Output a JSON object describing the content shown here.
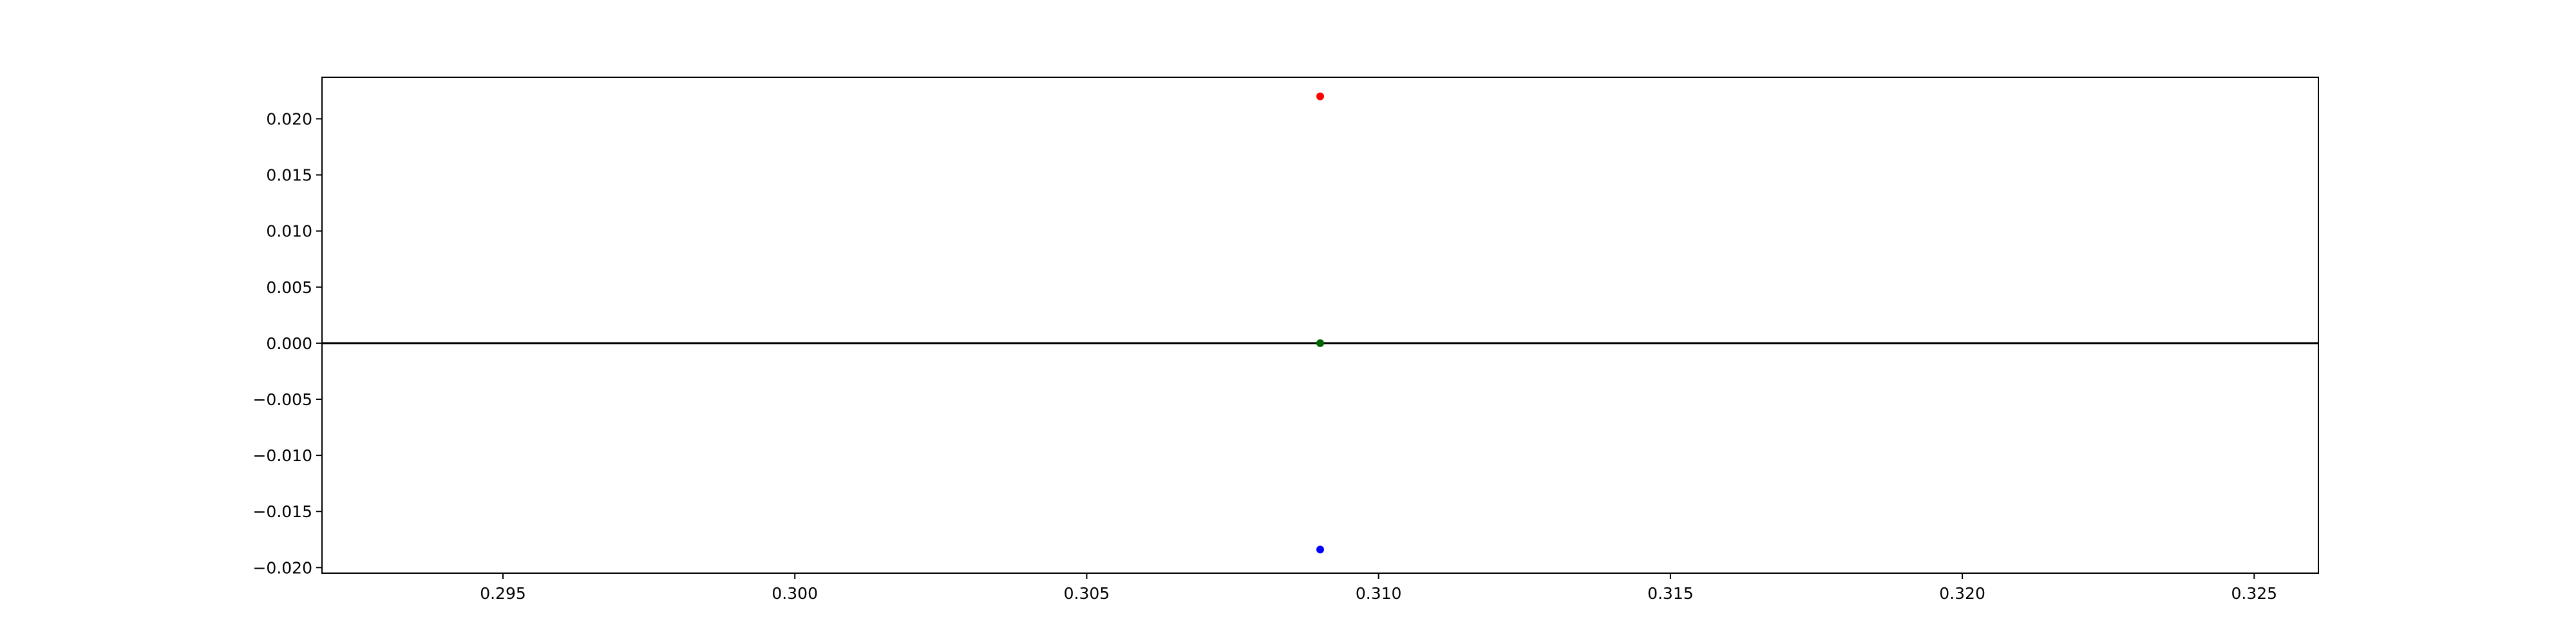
{
  "chart_data": {
    "type": "scatter",
    "title": "",
    "xlabel": "",
    "ylabel": "",
    "xlim": [
      0.2919,
      0.3261
    ],
    "ylim": [
      -0.0205,
      0.0237
    ],
    "grid": false,
    "legend": "none",
    "x_ticks": [
      0.295,
      0.3,
      0.305,
      0.31,
      0.315,
      0.32,
      0.325
    ],
    "x_tick_labels": [
      "0.295",
      "0.300",
      "0.305",
      "0.310",
      "0.315",
      "0.320",
      "0.325"
    ],
    "y_ticks": [
      0.02,
      0.015,
      0.01,
      0.005,
      0.0,
      -0.005,
      -0.01,
      -0.015,
      -0.02
    ],
    "y_tick_labels": [
      "0.020",
      "0.015",
      "0.010",
      "0.005",
      "0.000",
      "−0.005",
      "−0.010",
      "−0.015",
      "−0.020"
    ],
    "reference_line": {
      "y": 0.0,
      "color": "#000000"
    },
    "series": [
      {
        "color": "#ff0000",
        "points": [
          {
            "x": 0.309,
            "y": 0.022
          }
        ]
      },
      {
        "color": "#006400",
        "points": [
          {
            "x": 0.309,
            "y": 0.0
          }
        ]
      },
      {
        "color": "#0000ff",
        "points": [
          {
            "x": 0.309,
            "y": -0.0184
          }
        ]
      }
    ]
  }
}
